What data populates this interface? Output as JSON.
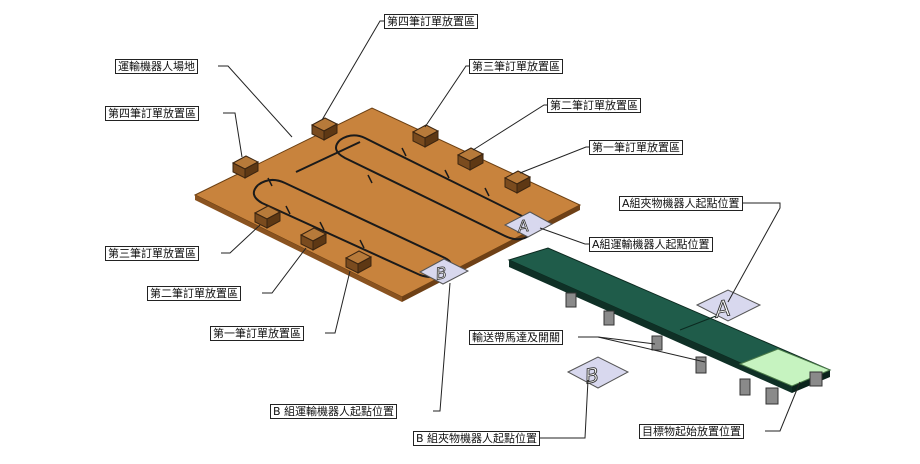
{
  "labels": {
    "field": "運輸機器人場地",
    "order4_top": "第四筆訂單放置區",
    "order3_top": "第三筆訂單放置區",
    "order2_top": "第二筆訂單放置區",
    "order1_top": "第一筆訂單放置區",
    "order4_left": "第四筆訂單放置區",
    "order3_bottom": "第三筆訂單放置區",
    "order2_bottom": "第二筆訂單放置區",
    "order1_bottom": "第一筆訂單放置區",
    "agv_a_start": "A組運輸機器人起點位置",
    "agv_b_start": "B 組運輸機器人起點位置",
    "arm_a_start": "A組夾物機器人起點位置",
    "arm_b_start": "B 組夾物機器人起點位置",
    "conveyor_motor": "輸送帶馬達及開關",
    "target_start": "目標物起始放置位置"
  },
  "markers": {
    "a_letter": "A",
    "b_letter": "B"
  },
  "colors": {
    "field": "#c8833d",
    "conveyor": "#1f5c4a",
    "target_zone": "#c6f3c0",
    "marker_pad": "#d8d8ee"
  }
}
